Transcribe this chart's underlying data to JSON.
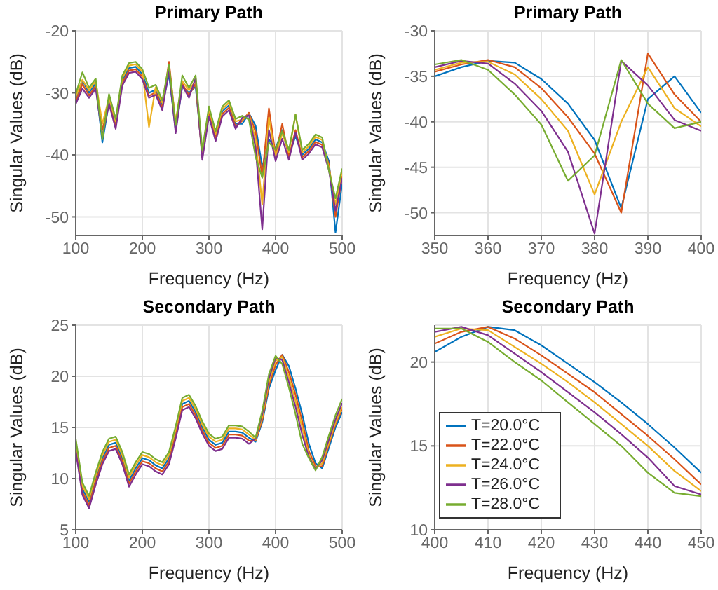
{
  "chart_data": [
    {
      "type": "line",
      "title": "Primary Path",
      "xlabel": "Frequency (Hz)",
      "ylabel": "Singular Values (dB)",
      "xlim": [
        100,
        500
      ],
      "ylim": [
        -53,
        -20
      ],
      "xticks": [
        100,
        200,
        300,
        400,
        500
      ],
      "yticks": [
        -50,
        -40,
        -30,
        -20
      ],
      "grid": true,
      "legend": false,
      "x": [
        100,
        110,
        120,
        130,
        140,
        150,
        160,
        170,
        180,
        190,
        200,
        210,
        220,
        230,
        240,
        250,
        260,
        270,
        280,
        290,
        300,
        310,
        320,
        330,
        340,
        350,
        360,
        370,
        380,
        390,
        400,
        410,
        420,
        430,
        440,
        450,
        460,
        470,
        480,
        490,
        500
      ],
      "series": [
        {
          "color": "#0072bd",
          "values": [
            -31,
            -28,
            -30,
            -28.5,
            -38,
            -31.5,
            -35,
            -28,
            -26,
            -25.8,
            -27,
            -30,
            -29.5,
            -32,
            -27,
            -36,
            -29,
            -30,
            -29,
            -40,
            -33,
            -37,
            -33,
            -32,
            -35,
            -35,
            -33.3,
            -35.3,
            -42,
            -37.5,
            -39,
            -36,
            -40,
            -37,
            -40,
            -39,
            -37.5,
            -38,
            -41,
            -52.5,
            -44.6
          ]
        },
        {
          "color": "#d95319",
          "values": [
            -31.4,
            -28.6,
            -30.4,
            -28.9,
            -36,
            -31.7,
            -35.4,
            -28.4,
            -26.4,
            -26.2,
            -27.4,
            -30.5,
            -29.9,
            -32.4,
            -25,
            -35,
            -28.5,
            -30.4,
            -28.5,
            -40.4,
            -33.4,
            -37.4,
            -33.4,
            -32.4,
            -35.4,
            -34.5,
            -33.2,
            -36.3,
            -43.5,
            -32.5,
            -40,
            -35,
            -40.4,
            -36,
            -40.4,
            -39.4,
            -37.9,
            -38.4,
            -41.5,
            -50,
            -43.4
          ]
        },
        {
          "color": "#edb120",
          "values": [
            -30.6,
            -27.9,
            -29.6,
            -28.1,
            -35,
            -30.8,
            -34.6,
            -27.6,
            -25.6,
            -25.4,
            -26.6,
            -35.5,
            -29.1,
            -31.6,
            -26,
            -34.6,
            -28.1,
            -29.6,
            -28,
            -39.6,
            -32.6,
            -36.6,
            -32.6,
            -31.6,
            -34.6,
            -34.3,
            -33.4,
            -37.5,
            -48,
            -34,
            -40.5,
            -36.5,
            -39.6,
            -33.5,
            -39.6,
            -38.6,
            -37.1,
            -37.6,
            -42,
            -48,
            -42.6
          ]
        },
        {
          "color": "#7e2f8e",
          "values": [
            -31.8,
            -29.3,
            -30.8,
            -29.3,
            -37,
            -31.8,
            -35.8,
            -28.8,
            -26.8,
            -26.6,
            -27.8,
            -30.8,
            -30.3,
            -32.8,
            -26.4,
            -36.5,
            -28.8,
            -30.8,
            -27.6,
            -40.8,
            -33.8,
            -37.8,
            -33.8,
            -32.8,
            -35.8,
            -34,
            -33.6,
            -38.8,
            -52,
            -36,
            -41,
            -37.4,
            -40.8,
            -36.4,
            -40.8,
            -39.8,
            -38.3,
            -38.8,
            -42.4,
            -49,
            -43.8
          ]
        },
        {
          "color": "#77ac30",
          "values": [
            -30.2,
            -26.7,
            -29.2,
            -27.7,
            -37.5,
            -30.2,
            -34.2,
            -27.2,
            -25.2,
            -25,
            -26.2,
            -29.2,
            -28.7,
            -31.2,
            -25.5,
            -35.2,
            -27.2,
            -29.2,
            -27.2,
            -39.2,
            -32.2,
            -36.2,
            -32.2,
            -31.2,
            -34.2,
            -33.7,
            -34.3,
            -40.3,
            -43.7,
            -38,
            -39.2,
            -36.2,
            -39.2,
            -33.5,
            -39.2,
            -38.2,
            -36.7,
            -37.2,
            -42.5,
            -47,
            -42.2
          ]
        }
      ]
    },
    {
      "type": "line",
      "title": "Primary Path",
      "xlabel": "Frequency (Hz)",
      "ylabel": "Singular Values (dB)",
      "xlim": [
        350,
        400
      ],
      "ylim": [
        -52.5,
        -30
      ],
      "xticks": [
        350,
        360,
        370,
        380,
        390,
        400
      ],
      "yticks": [
        -50,
        -45,
        -40,
        -35,
        -30
      ],
      "grid": true,
      "legend": false,
      "x": [
        350,
        355,
        360,
        365,
        370,
        375,
        380,
        385,
        390,
        395,
        400
      ],
      "series": [
        {
          "color": "#0072bd",
          "values": [
            -35,
            -34,
            -33.3,
            -33.5,
            -35.3,
            -38,
            -42,
            -49.5,
            -37.5,
            -35,
            -39
          ]
        },
        {
          "color": "#d95319",
          "values": [
            -34.5,
            -33.7,
            -33.2,
            -34,
            -36.3,
            -39.5,
            -43.5,
            -50,
            -32.5,
            -37,
            -40
          ]
        },
        {
          "color": "#edb120",
          "values": [
            -34.3,
            -33.5,
            -33.4,
            -34.8,
            -37.5,
            -41,
            -48,
            -40,
            -34,
            -38.5,
            -40.5
          ]
        },
        {
          "color": "#7e2f8e",
          "values": [
            -34,
            -33.3,
            -33.6,
            -35.8,
            -38.8,
            -43.3,
            -52.3,
            -33.3,
            -36,
            -39.8,
            -41
          ]
        },
        {
          "color": "#77ac30",
          "values": [
            -33.7,
            -33.2,
            -34.3,
            -37,
            -40.3,
            -46.5,
            -43.7,
            -33.2,
            -38,
            -40.7,
            -40
          ]
        }
      ]
    },
    {
      "type": "line",
      "title": "Secondary Path",
      "xlabel": "Frequency (Hz)",
      "ylabel": "Singular Values (dB)",
      "xlim": [
        100,
        500
      ],
      "ylim": [
        5,
        25
      ],
      "xticks": [
        100,
        200,
        300,
        400,
        500
      ],
      "yticks": [
        5,
        10,
        15,
        20,
        25
      ],
      "grid": true,
      "legend": false,
      "x": [
        100,
        110,
        120,
        130,
        140,
        150,
        160,
        170,
        180,
        190,
        200,
        210,
        220,
        230,
        240,
        250,
        260,
        270,
        280,
        290,
        300,
        310,
        320,
        330,
        340,
        350,
        360,
        370,
        380,
        390,
        400,
        410,
        420,
        430,
        440,
        450,
        460,
        470,
        480,
        490,
        500
      ],
      "series": [
        {
          "color": "#0072bd",
          "values": [
            13.3,
            9,
            7.7,
            10,
            12,
            13.3,
            13.5,
            12,
            9.8,
            11,
            12,
            11.8,
            11.3,
            11,
            12,
            14.5,
            17.3,
            17.6,
            16.5,
            15,
            13.8,
            13.3,
            13.5,
            14.6,
            14.6,
            14.5,
            14,
            13.6,
            15.5,
            18.8,
            20.6,
            22.1,
            21,
            18.8,
            16.3,
            13.4,
            11.5,
            11,
            13,
            15,
            16.5
          ]
        },
        {
          "color": "#d95319",
          "values": [
            13,
            8.7,
            7.4,
            9.7,
            11.7,
            13,
            13.2,
            11.7,
            9.5,
            10.7,
            11.7,
            11.5,
            11,
            10.7,
            11.7,
            14.2,
            17,
            17.3,
            16.2,
            14.7,
            13.5,
            13,
            13.2,
            14.3,
            14.3,
            14.2,
            13.7,
            13.7,
            15.7,
            19.1,
            21.1,
            22.1,
            20.4,
            18.2,
            15.6,
            12.7,
            11.2,
            11.2,
            13.3,
            15.3,
            16.8
          ]
        },
        {
          "color": "#edb120",
          "values": [
            13.6,
            9.3,
            8,
            10.3,
            12.3,
            13.6,
            13.8,
            12.3,
            10.1,
            11.3,
            12.3,
            12.1,
            11.6,
            11.3,
            12.3,
            14.8,
            17.6,
            17.9,
            16.8,
            15.3,
            14.1,
            13.6,
            13.8,
            14.9,
            14.9,
            14.8,
            14.3,
            13.8,
            16,
            19.5,
            21.5,
            21.9,
            19.9,
            17.6,
            15,
            12.3,
            11,
            11.5,
            13.5,
            15.5,
            17
          ]
        },
        {
          "color": "#7e2f8e",
          "values": [
            12.7,
            8.4,
            7.1,
            9.4,
            11.4,
            12.7,
            12.9,
            11.4,
            9.2,
            10.4,
            11.4,
            11.2,
            10.7,
            10.4,
            11.4,
            13.9,
            16.7,
            17,
            15.9,
            14.4,
            13.2,
            12.7,
            12.9,
            14,
            14,
            13.9,
            13.4,
            13.9,
            16.3,
            19.8,
            21.8,
            21.6,
            19.4,
            17,
            14.3,
            12.1,
            10.9,
            11.8,
            13.8,
            15.8,
            17.4
          ]
        },
        {
          "color": "#77ac30",
          "values": [
            13.9,
            9.6,
            8.3,
            10.6,
            12.6,
            13.9,
            14.1,
            12.6,
            10.4,
            11.6,
            12.6,
            12.4,
            11.9,
            11.6,
            12.6,
            15.1,
            17.9,
            18.2,
            17.1,
            15.6,
            14.4,
            13.9,
            14.1,
            15.2,
            15.2,
            15.1,
            14.6,
            14,
            16.6,
            20.2,
            22,
            21.2,
            18.9,
            16.3,
            13.4,
            12,
            10.8,
            12.1,
            14.2,
            16.2,
            17.8
          ]
        }
      ]
    },
    {
      "type": "line",
      "title": "Secondary Path",
      "xlabel": "Frequency (Hz)",
      "ylabel": "Singular Values (dB)",
      "xlim": [
        400,
        450
      ],
      "ylim": [
        10,
        22.2
      ],
      "xticks": [
        400,
        410,
        420,
        430,
        440,
        450
      ],
      "yticks": [
        10,
        15,
        20
      ],
      "grid": true,
      "legend": "bottom left",
      "x": [
        400,
        405,
        410,
        415,
        420,
        425,
        430,
        435,
        440,
        445,
        450
      ],
      "series": [
        {
          "name": "T=20.0°C",
          "color": "#0072bd",
          "values": [
            20.6,
            21.5,
            22.1,
            21.9,
            21,
            19.9,
            18.8,
            17.6,
            16.3,
            14.9,
            13.4
          ]
        },
        {
          "name": "T=22.0°C",
          "color": "#d95319",
          "values": [
            21.1,
            21.8,
            22.1,
            21.4,
            20.4,
            19.3,
            18.2,
            16.9,
            15.6,
            14.2,
            12.7
          ]
        },
        {
          "name": "T=24.0°C",
          "color": "#edb120",
          "values": [
            21.5,
            22,
            21.9,
            20.9,
            19.9,
            18.8,
            17.6,
            16.3,
            15,
            13.5,
            12.3
          ]
        },
        {
          "name": "T=26.0°C",
          "color": "#7e2f8e",
          "values": [
            21.8,
            22.1,
            21.6,
            20.5,
            19.4,
            18.2,
            17,
            15.7,
            14.3,
            12.6,
            12.1
          ]
        },
        {
          "name": "T=28.0°C",
          "color": "#77ac30",
          "values": [
            22,
            22,
            21.2,
            20,
            18.9,
            17.6,
            16.3,
            15,
            13.4,
            12.2,
            12
          ]
        }
      ]
    }
  ]
}
